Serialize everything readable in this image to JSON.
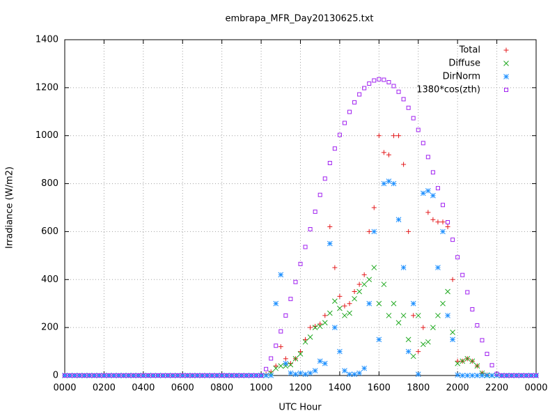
{
  "chart_data": {
    "type": "scatter",
    "title": "embrapa_MFR_Day20130625.txt",
    "xlabel": "UTC Hour",
    "ylabel": "Irradiance (W/m2)",
    "xlim": [
      0,
      24
    ],
    "ylim": [
      0,
      1400
    ],
    "xticks": [
      {
        "value": 0,
        "label": "0000"
      },
      {
        "value": 2,
        "label": "0200"
      },
      {
        "value": 4,
        "label": "0400"
      },
      {
        "value": 6,
        "label": "0600"
      },
      {
        "value": 8,
        "label": "0800"
      },
      {
        "value": 10,
        "label": "1000"
      },
      {
        "value": 12,
        "label": "1200"
      },
      {
        "value": 14,
        "label": "1400"
      },
      {
        "value": 16,
        "label": "1600"
      },
      {
        "value": 18,
        "label": "1800"
      },
      {
        "value": 20,
        "label": "2000"
      },
      {
        "value": 22,
        "label": "2200"
      },
      {
        "value": 24,
        "label": "0000"
      }
    ],
    "yticks": [
      0,
      200,
      400,
      600,
      800,
      1000,
      1200,
      1400
    ],
    "grid": true,
    "legend": "top-right",
    "x": [
      0,
      0.25,
      0.5,
      0.75,
      1,
      1.25,
      1.5,
      1.75,
      2,
      2.25,
      2.5,
      2.75,
      3,
      3.25,
      3.5,
      3.75,
      4,
      4.25,
      4.5,
      4.75,
      5,
      5.25,
      5.5,
      5.75,
      6,
      6.25,
      6.5,
      6.75,
      7,
      7.25,
      7.5,
      7.75,
      8,
      8.25,
      8.5,
      8.75,
      9,
      9.25,
      9.5,
      9.75,
      10,
      10.25,
      10.5,
      10.75,
      11,
      11.25,
      11.5,
      11.75,
      12,
      12.25,
      12.5,
      12.75,
      13,
      13.25,
      13.5,
      13.75,
      14,
      14.25,
      14.5,
      14.75,
      15,
      15.25,
      15.5,
      15.75,
      16,
      16.25,
      16.5,
      16.75,
      17,
      17.25,
      17.5,
      17.75,
      18,
      18.25,
      18.5,
      18.75,
      19,
      19.25,
      19.5,
      19.75,
      20,
      20.25,
      20.5,
      20.75,
      21,
      21.25,
      21.5,
      21.75,
      22,
      22.25,
      22.5,
      22.75,
      23,
      23.25,
      23.5,
      23.75,
      24
    ],
    "series": [
      {
        "name": "Total",
        "color": "#e41a1c",
        "marker": "plus",
        "values": [
          0,
          0,
          0,
          0,
          0,
          0,
          0,
          0,
          0,
          0,
          0,
          0,
          0,
          0,
          0,
          0,
          0,
          0,
          0,
          0,
          0,
          0,
          0,
          0,
          0,
          0,
          0,
          0,
          0,
          0,
          0,
          0,
          0,
          0,
          0,
          0,
          0,
          0,
          0,
          0,
          0,
          5,
          15,
          40,
          120,
          70,
          50,
          70,
          100,
          150,
          200,
          205,
          215,
          250,
          620,
          450,
          330,
          290,
          300,
          350,
          380,
          420,
          600,
          700,
          1000,
          930,
          920,
          1000,
          1000,
          880,
          600,
          250,
          100,
          200,
          680,
          650,
          640,
          640,
          620,
          400,
          60,
          60,
          70,
          60,
          40,
          10,
          2,
          0,
          0,
          0,
          0,
          0,
          0,
          0,
          0,
          0,
          0
        ]
      },
      {
        "name": "Diffuse",
        "color": "#1fa81f",
        "marker": "cross",
        "values": [
          0,
          0,
          0,
          0,
          0,
          0,
          0,
          0,
          0,
          0,
          0,
          0,
          0,
          0,
          0,
          0,
          0,
          0,
          0,
          0,
          0,
          0,
          0,
          0,
          0,
          0,
          0,
          0,
          0,
          0,
          0,
          0,
          0,
          0,
          0,
          0,
          0,
          0,
          0,
          0,
          0,
          0,
          10,
          30,
          40,
          40,
          45,
          70,
          90,
          140,
          160,
          200,
          205,
          220,
          260,
          310,
          280,
          250,
          260,
          320,
          350,
          380,
          400,
          450,
          300,
          380,
          250,
          300,
          220,
          250,
          150,
          80,
          250,
          130,
          140,
          200,
          250,
          300,
          350,
          180,
          50,
          60,
          70,
          60,
          40,
          10,
          2,
          0,
          0,
          0,
          0,
          0,
          0,
          0,
          0,
          0,
          0
        ]
      },
      {
        "name": "DirNorm",
        "color": "#1e90ff",
        "marker": "star",
        "values": [
          0,
          0,
          0,
          0,
          0,
          0,
          0,
          0,
          0,
          0,
          0,
          0,
          0,
          0,
          0,
          0,
          0,
          0,
          0,
          0,
          0,
          0,
          0,
          0,
          0,
          0,
          0,
          0,
          0,
          0,
          0,
          0,
          0,
          0,
          0,
          0,
          0,
          0,
          0,
          0,
          0,
          0,
          0,
          300,
          420,
          50,
          10,
          5,
          10,
          5,
          10,
          20,
          60,
          50,
          550,
          200,
          100,
          20,
          5,
          5,
          10,
          30,
          300,
          600,
          150,
          800,
          810,
          800,
          650,
          450,
          100,
          300,
          5,
          760,
          770,
          750,
          450,
          600,
          250,
          150,
          2,
          0,
          0,
          0,
          0,
          0,
          0,
          0,
          0,
          0,
          0,
          0,
          0,
          0,
          0,
          0,
          0
        ]
      },
      {
        "name": "1380*cos(zth)",
        "color": "#a020f0",
        "marker": "square",
        "values": [
          0,
          0,
          0,
          0,
          0,
          0,
          0,
          0,
          0,
          0,
          0,
          0,
          0,
          0,
          0,
          0,
          0,
          0,
          0,
          0,
          0,
          0,
          0,
          0,
          0,
          0,
          0,
          0,
          0,
          0,
          0,
          0,
          0,
          0,
          0,
          0,
          0,
          0,
          0,
          0,
          0,
          27,
          71,
          124,
          184,
          250,
          319,
          390,
          465,
          536,
          610,
          683,
          753,
          821,
          886,
          946,
          1003,
          1053,
          1099,
          1139,
          1172,
          1198,
          1217,
          1230,
          1235,
          1233,
          1223,
          1207,
          1183,
          1152,
          1116,
          1073,
          1024,
          969,
          911,
          847,
          781,
          711,
          639,
          566,
          493,
          419,
          347,
          276,
          209,
          147,
          90,
          43,
          7,
          0,
          0,
          0,
          0,
          0,
          0,
          0,
          0
        ]
      }
    ]
  }
}
